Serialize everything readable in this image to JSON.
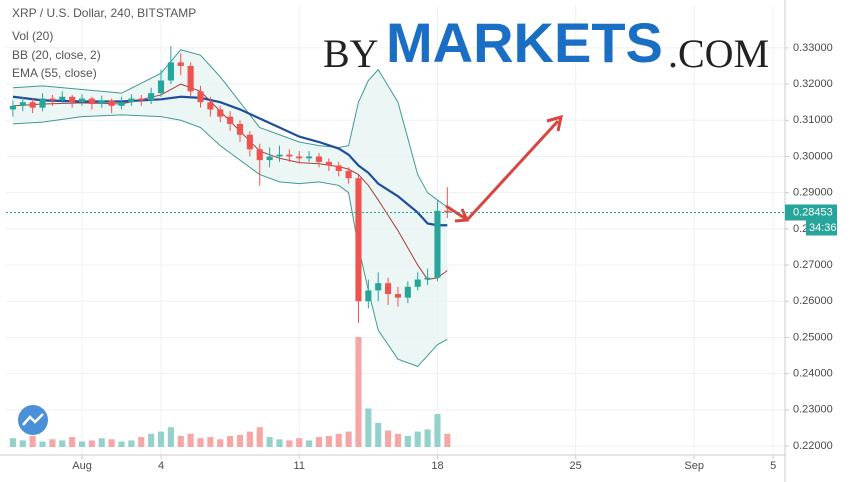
{
  "chart_data": {
    "type": "candlestick",
    "title": "XRP / U.S. Dollar, 240, BITSTAMP",
    "indicators": [
      "Vol (20)",
      "BB (20, close, 2)",
      "EMA (55, close)"
    ],
    "watermark": [
      "BY",
      "MARKETS",
      ".COM"
    ],
    "x": [
      -3.5,
      -3,
      -2.5,
      -2,
      -1.5,
      -1,
      -0.5,
      0,
      0.5,
      1,
      1.5,
      2,
      2.5,
      3,
      3.5,
      4,
      4.5,
      5,
      5.5,
      6,
      6.5,
      7,
      7.5,
      8,
      8.5,
      9,
      9.5,
      10,
      10.5,
      11,
      11.5,
      12,
      12.5,
      13,
      13.5,
      14,
      14.5,
      15,
      15.5,
      16,
      16.5,
      17,
      17.5,
      18,
      18.5
    ],
    "open": [
      0.313,
      0.314,
      0.315,
      0.3135,
      0.316,
      0.3155,
      0.3165,
      0.315,
      0.316,
      0.3145,
      0.3155,
      0.314,
      0.315,
      0.316,
      0.3155,
      0.3175,
      0.321,
      0.326,
      0.325,
      0.318,
      0.315,
      0.313,
      0.311,
      0.309,
      0.306,
      0.302,
      0.299,
      0.3,
      0.3005,
      0.3,
      0.2995,
      0.3,
      0.2985,
      0.2975,
      0.296,
      0.294,
      0.26,
      0.263,
      0.265,
      0.262,
      0.261,
      0.264,
      0.266,
      0.2665,
      0.285
    ],
    "high": [
      0.3155,
      0.3165,
      0.316,
      0.3175,
      0.317,
      0.318,
      0.317,
      0.3172,
      0.3165,
      0.3168,
      0.316,
      0.3165,
      0.3172,
      0.317,
      0.319,
      0.324,
      0.3305,
      0.3285,
      0.326,
      0.3195,
      0.3165,
      0.314,
      0.3125,
      0.31,
      0.307,
      0.3035,
      0.3025,
      0.303,
      0.302,
      0.3015,
      0.3015,
      0.301,
      0.2995,
      0.2985,
      0.297,
      0.295,
      0.266,
      0.268,
      0.2665,
      0.264,
      0.2655,
      0.268,
      0.269,
      0.288,
      0.2915
    ],
    "low": [
      0.311,
      0.3125,
      0.312,
      0.3125,
      0.314,
      0.3145,
      0.3135,
      0.314,
      0.313,
      0.3135,
      0.312,
      0.313,
      0.314,
      0.314,
      0.3145,
      0.3165,
      0.32,
      0.3225,
      0.3165,
      0.3135,
      0.311,
      0.3095,
      0.307,
      0.304,
      0.3,
      0.292,
      0.297,
      0.2985,
      0.2985,
      0.298,
      0.2985,
      0.297,
      0.296,
      0.2945,
      0.2925,
      0.254,
      0.258,
      0.26,
      0.259,
      0.2585,
      0.2595,
      0.263,
      0.2645,
      0.2655,
      0.283
    ],
    "close": [
      0.314,
      0.315,
      0.3135,
      0.316,
      0.3155,
      0.3165,
      0.315,
      0.316,
      0.3145,
      0.3155,
      0.314,
      0.315,
      0.316,
      0.3155,
      0.3175,
      0.321,
      0.326,
      0.325,
      0.318,
      0.315,
      0.313,
      0.311,
      0.309,
      0.306,
      0.302,
      0.299,
      0.3,
      0.3005,
      0.3,
      0.2995,
      0.3,
      0.2985,
      0.2975,
      0.296,
      0.294,
      0.26,
      0.263,
      0.265,
      0.262,
      0.261,
      0.264,
      0.266,
      0.2665,
      0.285,
      0.28453
    ],
    "volume": [
      8,
      6,
      10,
      5,
      7,
      6,
      9,
      5,
      6,
      8,
      7,
      5,
      6,
      9,
      12,
      14,
      18,
      10,
      12,
      8,
      9,
      7,
      10,
      11,
      14,
      18,
      9,
      7,
      6,
      8,
      6,
      9,
      10,
      12,
      14,
      100,
      35,
      22,
      15,
      12,
      10,
      14,
      16,
      30,
      12
    ],
    "vlim": [
      0,
      100
    ],
    "overlays": {
      "x": [
        -3.5,
        -2,
        0,
        2,
        4,
        5,
        6,
        7,
        8,
        9,
        10,
        11,
        12,
        13,
        13.5,
        14,
        14.5,
        15,
        16,
        17,
        17.5,
        18,
        18.5
      ],
      "ema": [
        0.3165,
        0.3155,
        0.3152,
        0.3152,
        0.3158,
        0.3165,
        0.3162,
        0.315,
        0.313,
        0.3105,
        0.308,
        0.3055,
        0.304,
        0.3022,
        0.3005,
        0.2975,
        0.2955,
        0.2925,
        0.289,
        0.2845,
        0.2815,
        0.281,
        0.281
      ],
      "bb_upper": [
        0.319,
        0.3195,
        0.3185,
        0.3175,
        0.323,
        0.3295,
        0.328,
        0.322,
        0.315,
        0.308,
        0.306,
        0.304,
        0.303,
        0.3025,
        0.303,
        0.315,
        0.321,
        0.324,
        0.315,
        0.295,
        0.29,
        0.288,
        0.286
      ],
      "bb_basis": [
        0.314,
        0.3145,
        0.3148,
        0.3145,
        0.317,
        0.32,
        0.318,
        0.3125,
        0.307,
        0.3015,
        0.2995,
        0.2983,
        0.298,
        0.2972,
        0.2965,
        0.295,
        0.292,
        0.288,
        0.2795,
        0.27,
        0.266,
        0.2665,
        0.2685
      ],
      "bb_lower": [
        0.309,
        0.3095,
        0.311,
        0.3115,
        0.311,
        0.31,
        0.308,
        0.303,
        0.299,
        0.295,
        0.293,
        0.2925,
        0.293,
        0.292,
        0.29,
        0.275,
        0.263,
        0.252,
        0.244,
        0.242,
        0.245,
        0.248,
        0.2495
      ]
    },
    "colors": {
      "up": "#26a69a",
      "down": "#ef5350",
      "up_volume": "#93d2ca",
      "down_volume": "#f5a6a5",
      "ema": "#1f4e9c",
      "bb_band": "#3f9a95",
      "bb_basis": "#a83d3d",
      "bb_fill": "#e7f4f2"
    },
    "last_price": 0.28453,
    "countdown": "34:36",
    "xlim": [
      -3.85,
      35.6
    ],
    "xticks": [
      {
        "value": 0,
        "label": "Aug"
      },
      4,
      11,
      18,
      25,
      {
        "value": 31,
        "label": "Sep"
      },
      {
        "value": 35,
        "label": "5"
      }
    ],
    "ylim": [
      0.21752,
      0.34158
    ],
    "yticks": [
      {
        "value": 0.22,
        "label": "0.22000"
      },
      {
        "value": 0.23,
        "label": "0.23000"
      },
      {
        "value": 0.24,
        "label": "0.24000"
      },
      {
        "value": 0.25,
        "label": "0.25000"
      },
      {
        "value": 0.26,
        "label": "0.26000"
      },
      {
        "value": 0.27,
        "label": "0.27000"
      },
      {
        "value": 0.28,
        "label": "0.28000"
      },
      {
        "value": 0.29,
        "label": "0.29000"
      },
      {
        "value": 0.3,
        "label": "0.30000"
      },
      {
        "value": 0.31,
        "label": "0.31000"
      },
      {
        "value": 0.32,
        "label": "0.32000"
      },
      {
        "value": 0.33,
        "label": "0.33000"
      }
    ],
    "grid": true
  }
}
